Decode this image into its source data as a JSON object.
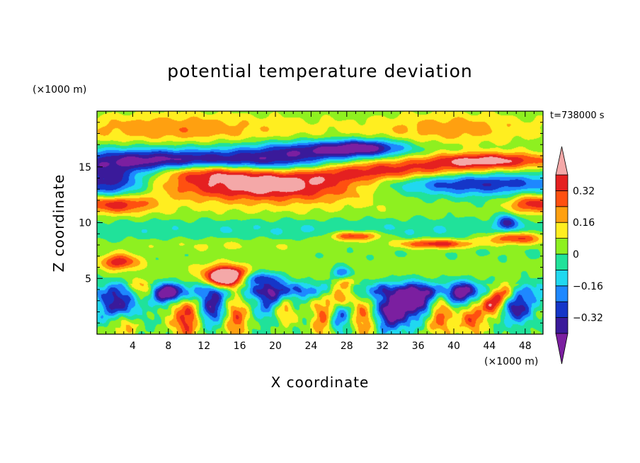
{
  "chart_data": {
    "type": "heatmap",
    "title": "potential temperature deviation",
    "xlabel": "X coordinate",
    "ylabel": "Z coordinate",
    "x_unit": "(×1000 m)",
    "y_unit": "(×1000 m)",
    "time_label": "t=738000 s",
    "xlim": [
      0,
      50
    ],
    "ylim": [
      0,
      20
    ],
    "x_ticks": [
      4,
      8,
      12,
      16,
      20,
      24,
      28,
      32,
      36,
      40,
      44,
      48
    ],
    "y_ticks": [
      5,
      10,
      15
    ],
    "colorbar": {
      "levels": [
        -0.4,
        -0.32,
        -0.24,
        -0.16,
        -0.08,
        0,
        0.08,
        0.16,
        0.24,
        0.32,
        0.4
      ],
      "tick_labels": [
        {
          "value": 0.32,
          "label": "0.32"
        },
        {
          "value": 0.16,
          "label": "0.16"
        },
        {
          "value": 0,
          "label": "0"
        },
        {
          "value": -0.16,
          "label": "−0.16"
        },
        {
          "value": -0.32,
          "label": "−0.32"
        }
      ],
      "colors": [
        "#7b1fa0",
        "#3a1a9a",
        "#1536c8",
        "#1e88ff",
        "#20d8f0",
        "#20e29a",
        "#8ef020",
        "#ffee20",
        "#ffa010",
        "#ff5010",
        "#e52020",
        "#f4a8a8"
      ],
      "extend": "both"
    },
    "features": [
      {
        "x": 19,
        "z": 13.2,
        "wx": 9,
        "wz": 1.0,
        "a": 0.45,
        "r": -0.4
      },
      {
        "x": 33,
        "z": 14.6,
        "wx": 10,
        "wz": 0.75,
        "a": 0.45,
        "r": 0.1
      },
      {
        "x": 13,
        "z": 14.7,
        "wx": 5,
        "wz": 0.6,
        "a": 0.42,
        "r": -0.15
      },
      {
        "x": 44,
        "z": 15.6,
        "wx": 5,
        "wz": 0.5,
        "a": 0.38,
        "r": 0
      },
      {
        "x": 2,
        "z": 11.7,
        "wx": 3,
        "wz": 0.6,
        "a": 0.38,
        "r": 0
      },
      {
        "x": 49,
        "z": 11.7,
        "wx": 2,
        "wz": 0.6,
        "a": 0.36,
        "r": 0
      },
      {
        "x": 6,
        "z": 15.5,
        "wx": 7,
        "wz": 0.8,
        "a": -0.46,
        "r": 0
      },
      {
        "x": 19,
        "z": 15.2,
        "wx": 6,
        "wz": 0.7,
        "a": -0.44,
        "r": -0.1
      },
      {
        "x": 41,
        "z": 13.7,
        "wx": 8,
        "wz": 0.8,
        "a": -0.44,
        "r": 0
      },
      {
        "x": 25,
        "z": 16.5,
        "wx": 6,
        "wz": 0.6,
        "a": -0.36,
        "r": 0
      },
      {
        "x": 1.5,
        "z": 13.5,
        "wx": 3,
        "wz": 1.0,
        "a": -0.4,
        "r": 0
      },
      {
        "x": 30,
        "z": 16.8,
        "wx": 3,
        "wz": 0.5,
        "a": -0.3,
        "r": 0
      },
      {
        "x": 25,
        "z": 18.3,
        "wx": 30,
        "wz": 1.2,
        "a": 0.08,
        "r": 0
      },
      {
        "x": 8,
        "z": 18.5,
        "wx": 8,
        "wz": 1.0,
        "a": 0.16,
        "r": 0
      },
      {
        "x": 40,
        "z": 18.5,
        "wx": 6,
        "wz": 1.0,
        "a": 0.14,
        "r": 0
      },
      {
        "x": 20,
        "z": 10.7,
        "wx": 25,
        "wz": 0.8,
        "a": 0.08,
        "r": 0
      },
      {
        "x": 25,
        "z": 9.6,
        "wx": 28,
        "wz": 0.9,
        "a": -0.1,
        "r": 0
      },
      {
        "x": 15,
        "z": 8.0,
        "wx": 10,
        "wz": 0.5,
        "a": 0.1,
        "r": 0
      },
      {
        "x": 29,
        "z": 8.8,
        "wx": 2,
        "wz": 0.3,
        "a": 0.38,
        "r": 0
      },
      {
        "x": 38,
        "z": 8.1,
        "wx": 3,
        "wz": 0.3,
        "a": 0.38,
        "r": -0.1
      },
      {
        "x": 47,
        "z": 8.6,
        "wx": 2.5,
        "wz": 0.4,
        "a": 0.36,
        "r": 0
      },
      {
        "x": 2.5,
        "z": 6.5,
        "wx": 1.5,
        "wz": 0.5,
        "a": 0.36,
        "r": 0
      },
      {
        "x": 14,
        "z": 4.8,
        "wx": 1.5,
        "wz": 0.8,
        "a": 0.38,
        "r": -0.5
      },
      {
        "x": 15,
        "z": 5.3,
        "wx": 1.5,
        "wz": 0.6,
        "a": 0.38,
        "r": 0
      },
      {
        "x": 27.5,
        "z": 3.8,
        "wx": 1.0,
        "wz": 0.8,
        "a": 0.4,
        "r": 0.3
      },
      {
        "x": 21,
        "z": 2.3,
        "wx": 0.9,
        "wz": 1.0,
        "a": 0.4,
        "r": 0
      },
      {
        "x": 44.5,
        "z": 2.8,
        "wx": 1.0,
        "wz": 0.8,
        "a": 0.4,
        "r": 0
      },
      {
        "x": 46,
        "z": 3.8,
        "wx": 1.0,
        "wz": 0.6,
        "a": 0.38,
        "r": 0
      },
      {
        "x": 5,
        "z": 4.0,
        "wx": 1.0,
        "wz": 0.6,
        "a": 0.36,
        "r": 0
      },
      {
        "x": 10,
        "z": 1.5,
        "wx": 1.2,
        "wz": 1.5,
        "a": 0.36,
        "r": 0
      },
      {
        "x": 15.5,
        "z": 1.5,
        "wx": 1.0,
        "wz": 1.4,
        "a": 0.32,
        "r": 0
      },
      {
        "x": 25.5,
        "z": 1.5,
        "wx": 1.0,
        "wz": 1.4,
        "a": 0.32,
        "r": 0
      },
      {
        "x": 30,
        "z": 1.5,
        "wx": 1.0,
        "wz": 1.4,
        "a": 0.3,
        "r": 0
      },
      {
        "x": 38.5,
        "z": 1.8,
        "wx": 1.0,
        "wz": 1.4,
        "a": 0.32,
        "r": 0
      },
      {
        "x": 42,
        "z": 1.5,
        "wx": 1.0,
        "wz": 1.3,
        "a": 0.3,
        "r": 0
      },
      {
        "x": 3,
        "z": 1.0,
        "wx": 1.0,
        "wz": 1.0,
        "a": 0.26,
        "r": 0
      },
      {
        "x": 8,
        "z": 3.6,
        "wx": 1.3,
        "wz": 0.6,
        "a": -0.44,
        "r": 0
      },
      {
        "x": 2.5,
        "z": 2.5,
        "wx": 1.5,
        "wz": 1.0,
        "a": -0.42,
        "r": 0
      },
      {
        "x": 13,
        "z": 2.5,
        "wx": 1.2,
        "wz": 1.2,
        "a": -0.38,
        "r": 0
      },
      {
        "x": 20,
        "z": 3.0,
        "wx": 1.5,
        "wz": 1.2,
        "a": -0.34,
        "r": 0
      },
      {
        "x": 33,
        "z": 2.0,
        "wx": 1.5,
        "wz": 1.2,
        "a": -0.46,
        "r": 0
      },
      {
        "x": 36,
        "z": 3.0,
        "wx": 1.5,
        "wz": 1.0,
        "a": -0.42,
        "r": 0
      },
      {
        "x": 41,
        "z": 3.5,
        "wx": 1.2,
        "wz": 0.8,
        "a": -0.4,
        "r": 0
      },
      {
        "x": 47,
        "z": 2.5,
        "wx": 1.2,
        "wz": 1.0,
        "a": -0.42,
        "r": 0
      },
      {
        "x": 27,
        "z": 1.5,
        "wx": 1.0,
        "wz": 1.0,
        "a": -0.3,
        "r": 0
      },
      {
        "x": 25,
        "z": 3.9,
        "wx": 25,
        "wz": 0.5,
        "a": -0.2,
        "r": 0
      },
      {
        "x": 25,
        "z": 5.9,
        "wx": 25,
        "wz": 0.7,
        "a": 0.05,
        "r": 0
      },
      {
        "x": 18,
        "z": 5.0,
        "wx": 1.5,
        "wz": 0.4,
        "a": -0.3,
        "r": 0
      },
      {
        "x": 27.5,
        "z": 5.5,
        "wx": 0.8,
        "wz": 0.4,
        "a": -0.3,
        "r": 0
      },
      {
        "x": 46,
        "z": 10.0,
        "wx": 0.8,
        "wz": 0.5,
        "a": -0.34,
        "r": 0
      }
    ]
  }
}
